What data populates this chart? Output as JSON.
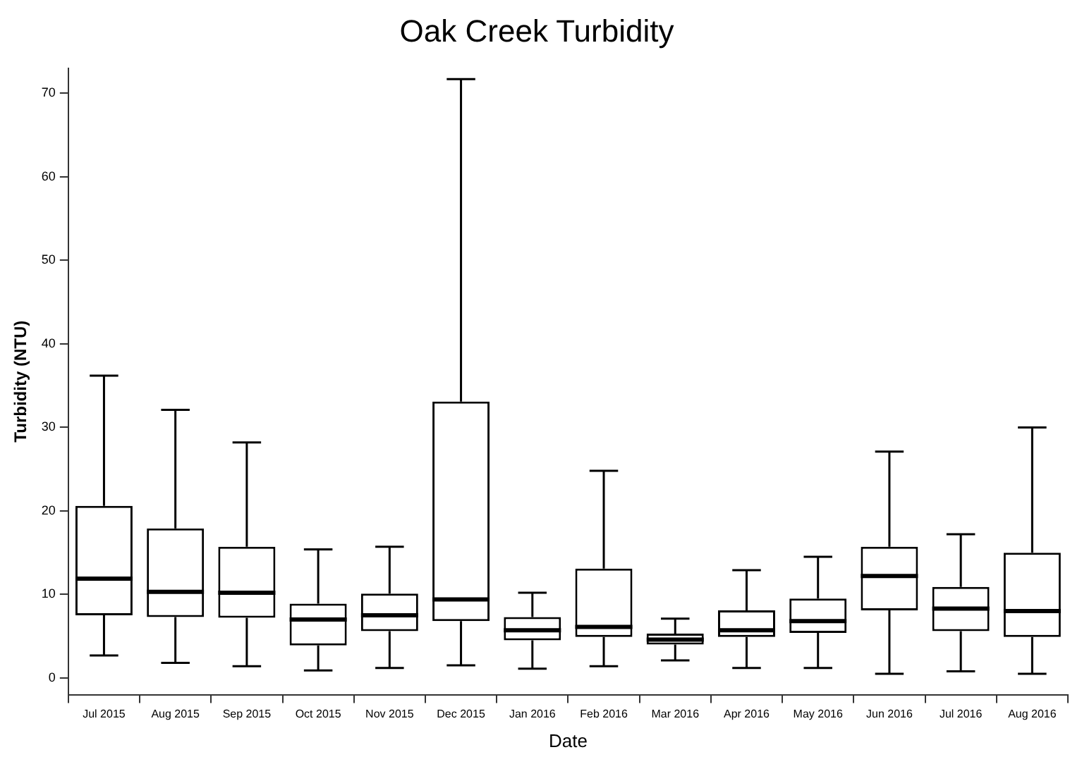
{
  "chart_data": {
    "type": "box",
    "title": "Oak Creek Turbidity",
    "xlabel": "Date",
    "ylabel": "Turbidity (NTU)",
    "categories": [
      "Jul 2015",
      "Aug 2015",
      "Sep 2015",
      "Oct 2015",
      "Nov 2015",
      "Dec 2015",
      "Jan 2016",
      "Feb 2016",
      "Mar 2016",
      "Apr 2016",
      "May 2016",
      "Jun 2016",
      "Jul 2016",
      "Aug 2016"
    ],
    "boxes": [
      {
        "low": 2.7,
        "q1": 7.5,
        "median": 11.9,
        "q3": 20.6,
        "high": 36.2
      },
      {
        "low": 1.8,
        "q1": 7.3,
        "median": 10.3,
        "q3": 17.9,
        "high": 32.1
      },
      {
        "low": 1.4,
        "q1": 7.2,
        "median": 10.2,
        "q3": 15.7,
        "high": 28.2
      },
      {
        "low": 0.9,
        "q1": 3.9,
        "median": 7.0,
        "q3": 8.9,
        "high": 15.4
      },
      {
        "low": 1.2,
        "q1": 5.6,
        "median": 7.5,
        "q3": 10.1,
        "high": 15.7
      },
      {
        "low": 1.5,
        "q1": 6.8,
        "median": 9.4,
        "q3": 33.1,
        "high": 71.7
      },
      {
        "low": 1.1,
        "q1": 4.5,
        "median": 5.7,
        "q3": 7.3,
        "high": 10.2
      },
      {
        "low": 1.4,
        "q1": 4.9,
        "median": 6.1,
        "q3": 13.1,
        "high": 24.8
      },
      {
        "low": 2.1,
        "q1": 4.0,
        "median": 4.6,
        "q3": 5.3,
        "high": 7.1
      },
      {
        "low": 1.2,
        "q1": 4.9,
        "median": 5.7,
        "q3": 8.1,
        "high": 12.9
      },
      {
        "low": 1.2,
        "q1": 5.4,
        "median": 6.8,
        "q3": 9.5,
        "high": 14.5
      },
      {
        "low": 0.5,
        "q1": 8.1,
        "median": 12.2,
        "q3": 15.7,
        "high": 27.1
      },
      {
        "low": 0.8,
        "q1": 5.6,
        "median": 8.3,
        "q3": 10.9,
        "high": 17.2
      },
      {
        "low": 0.5,
        "q1": 4.9,
        "median": 8.0,
        "q3": 15.0,
        "high": 30.0
      }
    ],
    "color": "#000000",
    "ylim": [
      -2,
      73
    ],
    "yticks": [
      0,
      10,
      20,
      30,
      40,
      50,
      60,
      70
    ],
    "grid": false,
    "legend": false
  }
}
